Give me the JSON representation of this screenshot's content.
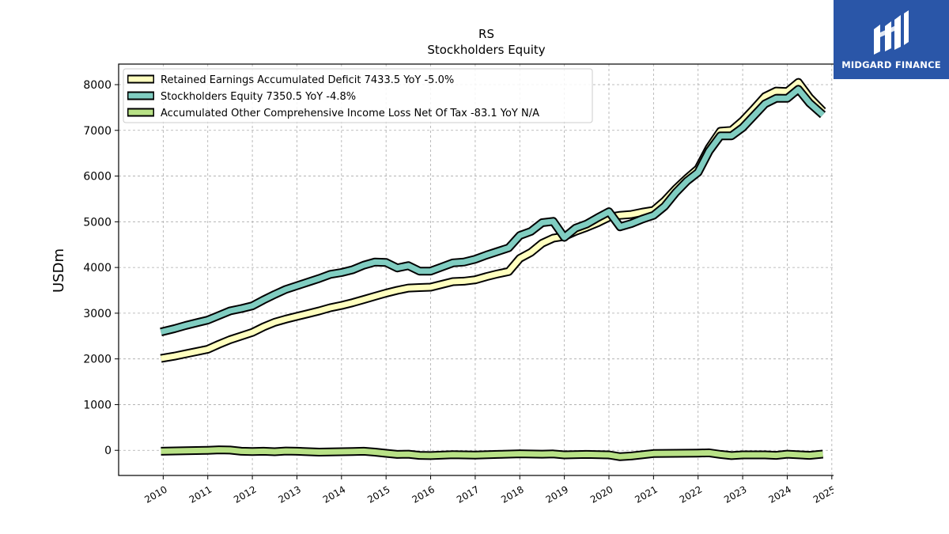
{
  "brand": {
    "name": "MIDGARD FINANCE",
    "bg_color": "#2a56a8"
  },
  "chart_data": {
    "type": "line",
    "title": "RS",
    "subtitle": "Stockholders  Equity",
    "xlabel": "",
    "ylabel": "USDm",
    "ylim": [
      -550,
      8450
    ],
    "xlim": [
      2009.0,
      2025.5
    ],
    "yticks": [
      0,
      1000,
      2000,
      3000,
      4000,
      5000,
      6000,
      7000,
      8000
    ],
    "xticks": [
      "2010",
      "2011",
      "2012",
      "2013",
      "2014",
      "2015",
      "2016",
      "2017",
      "2018",
      "2019",
      "2020",
      "2021",
      "2022",
      "2023",
      "2024",
      "2025"
    ],
    "grid": true,
    "legend_position": "top-left",
    "series": [
      {
        "name": "Retained Earnings Accumulated Deficit",
        "legend": "Retained Earnings Accumulated Deficit  7433.5 YoY -5.0%",
        "color": "#ffffbf",
        "x": [
          2009.95,
          2010.25,
          2010.5,
          2010.75,
          2011.0,
          2011.25,
          2011.5,
          2011.75,
          2012.0,
          2012.25,
          2012.5,
          2012.75,
          2013.0,
          2013.25,
          2013.5,
          2013.75,
          2014.0,
          2014.25,
          2014.5,
          2014.75,
          2015.0,
          2015.25,
          2015.5,
          2015.75,
          2016.0,
          2016.25,
          2016.5,
          2016.75,
          2017.0,
          2017.25,
          2017.5,
          2017.75,
          2018.0,
          2018.25,
          2018.5,
          2018.75,
          2019.0,
          2019.25,
          2019.5,
          2019.75,
          2020.0,
          2020.25,
          2020.5,
          2020.75,
          2021.0,
          2021.25,
          2021.5,
          2021.75,
          2022.0,
          2022.25,
          2022.5,
          2022.75,
          2023.0,
          2023.25,
          2023.5,
          2023.75,
          2024.0,
          2024.25,
          2024.5,
          2024.8
        ],
        "values": [
          2010,
          2060,
          2110,
          2160,
          2210,
          2320,
          2420,
          2500,
          2580,
          2700,
          2800,
          2870,
          2930,
          2990,
          3050,
          3120,
          3170,
          3230,
          3300,
          3370,
          3440,
          3500,
          3550,
          3560,
          3570,
          3630,
          3690,
          3700,
          3730,
          3800,
          3860,
          3910,
          4200,
          4330,
          4530,
          4640,
          4680,
          4790,
          4880,
          4980,
          5100,
          5140,
          5160,
          5210,
          5250,
          5460,
          5720,
          5950,
          6160,
          6620,
          6980,
          7000,
          7210,
          7470,
          7740,
          7860,
          7850,
          8050,
          7720,
          7420
        ]
      },
      {
        "name": "Stockholders Equity",
        "legend": "Stockholders Equity  7350.5 YoY -4.8%",
        "color": "#80cdc1",
        "x": [
          2009.95,
          2010.25,
          2010.5,
          2010.75,
          2011.0,
          2011.25,
          2011.5,
          2011.75,
          2012.0,
          2012.25,
          2012.5,
          2012.75,
          2013.0,
          2013.25,
          2013.5,
          2013.75,
          2014.0,
          2014.25,
          2014.5,
          2014.75,
          2015.0,
          2015.25,
          2015.5,
          2015.75,
          2016.0,
          2016.25,
          2016.5,
          2016.75,
          2017.0,
          2017.25,
          2017.5,
          2017.75,
          2018.0,
          2018.25,
          2018.5,
          2018.75,
          2019.0,
          2019.25,
          2019.5,
          2019.75,
          2020.0,
          2020.25,
          2020.5,
          2020.75,
          2021.0,
          2021.25,
          2021.5,
          2021.75,
          2022.0,
          2022.25,
          2022.5,
          2022.75,
          2023.0,
          2023.25,
          2023.5,
          2023.75,
          2024.0,
          2024.25,
          2024.5,
          2024.8
        ],
        "values": [
          2590,
          2660,
          2730,
          2790,
          2850,
          2950,
          3050,
          3100,
          3160,
          3290,
          3410,
          3520,
          3600,
          3680,
          3760,
          3850,
          3890,
          3950,
          4050,
          4120,
          4110,
          3990,
          4040,
          3920,
          3920,
          4010,
          4100,
          4120,
          4180,
          4270,
          4350,
          4430,
          4700,
          4790,
          4980,
          5010,
          4660,
          4860,
          4950,
          5090,
          5220,
          4890,
          4960,
          5060,
          5140,
          5340,
          5640,
          5890,
          6080,
          6550,
          6880,
          6880,
          7060,
          7320,
          7580,
          7700,
          7700,
          7900,
          7600,
          7340
        ]
      },
      {
        "name": "Accumulated Other Comprehensive Income Loss Net Of Tax",
        "legend": "Accumulated Other Comprehensive Income Loss Net Of Tax  -83.1 YoY N/A",
        "color": "#b8e186",
        "x": [
          2009.95,
          2010.5,
          2011.0,
          2011.25,
          2011.5,
          2011.75,
          2012.0,
          2012.25,
          2012.5,
          2012.75,
          2013.0,
          2013.5,
          2014.0,
          2014.25,
          2014.5,
          2014.75,
          2015.0,
          2015.25,
          2015.5,
          2015.75,
          2016.0,
          2016.5,
          2017.0,
          2017.5,
          2018.0,
          2018.5,
          2018.75,
          2019.0,
          2019.5,
          2020.0,
          2020.25,
          2020.5,
          2021.0,
          2021.5,
          2022.0,
          2022.25,
          2022.5,
          2022.75,
          2023.0,
          2023.5,
          2023.75,
          2024.0,
          2024.5,
          2024.8
        ],
        "values": [
          -20,
          -10,
          0,
          10,
          5,
          -20,
          -25,
          -20,
          -30,
          -15,
          -20,
          -40,
          -30,
          -25,
          -20,
          -40,
          -65,
          -90,
          -85,
          -110,
          -115,
          -95,
          -105,
          -90,
          -75,
          -85,
          -80,
          -100,
          -90,
          -100,
          -140,
          -125,
          -70,
          -65,
          -60,
          -55,
          -90,
          -115,
          -100,
          -100,
          -110,
          -85,
          -110,
          -83
        ]
      }
    ]
  }
}
